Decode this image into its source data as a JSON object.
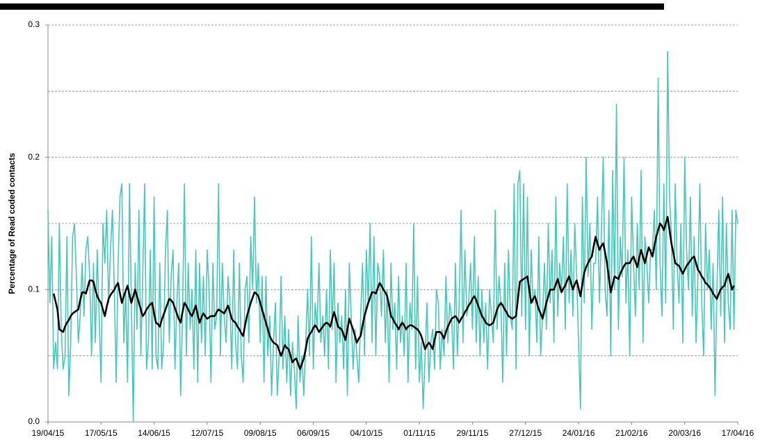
{
  "chart_data": {
    "type": "line",
    "y_label": "Percentage of Read coded contacts",
    "ylim": [
      0,
      0.3
    ],
    "yticks": [
      {
        "value": 0,
        "label": "0.0"
      },
      0.1,
      0.2,
      0.3
    ],
    "minor_grid": [
      0.05,
      0.15,
      0.25
    ],
    "grid": true,
    "categories": [
      "19/04/15",
      null,
      null,
      null,
      null,
      null,
      null,
      null,
      null,
      null,
      null,
      null,
      null,
      null,
      null,
      null,
      null,
      null,
      null,
      null,
      null,
      null,
      null,
      null,
      null,
      null,
      null,
      null,
      "17/05/15",
      null,
      null,
      null,
      null,
      null,
      null,
      null,
      null,
      null,
      null,
      null,
      null,
      null,
      null,
      null,
      null,
      null,
      null,
      null,
      null,
      null,
      null,
      null,
      null,
      null,
      null,
      null,
      "14/06/15",
      null,
      null,
      null,
      null,
      null,
      null,
      null,
      null,
      null,
      null,
      null,
      null,
      null,
      null,
      null,
      null,
      null,
      null,
      null,
      null,
      null,
      null,
      null,
      null,
      null,
      null,
      null,
      "12/07/15",
      null,
      null,
      null,
      null,
      null,
      null,
      null,
      null,
      null,
      null,
      null,
      null,
      null,
      null,
      null,
      null,
      null,
      null,
      null,
      null,
      null,
      null,
      null,
      null,
      null,
      null,
      null,
      "09/08/15",
      null,
      null,
      null,
      null,
      null,
      null,
      null,
      null,
      null,
      null,
      null,
      null,
      null,
      null,
      null,
      null,
      null,
      null,
      null,
      null,
      null,
      null,
      null,
      null,
      null,
      null,
      null,
      "06/09/15",
      null,
      null,
      null,
      null,
      null,
      null,
      null,
      null,
      null,
      null,
      null,
      null,
      null,
      null,
      null,
      null,
      null,
      null,
      null,
      null,
      null,
      null,
      null,
      null,
      null,
      null,
      null,
      "04/10/15",
      null,
      null,
      null,
      null,
      null,
      null,
      null,
      null,
      null,
      null,
      null,
      null,
      null,
      null,
      null,
      null,
      null,
      null,
      null,
      null,
      null,
      null,
      null,
      null,
      null,
      null,
      null,
      "01/11/15",
      null,
      null,
      null,
      null,
      null,
      null,
      null,
      null,
      null,
      null,
      null,
      null,
      null,
      null,
      null,
      null,
      null,
      null,
      null,
      null,
      null,
      null,
      null,
      null,
      null,
      null,
      null,
      "29/11/15",
      null,
      null,
      null,
      null,
      null,
      null,
      null,
      null,
      null,
      null,
      null,
      null,
      null,
      null,
      null,
      null,
      null,
      null,
      null,
      null,
      null,
      null,
      null,
      null,
      null,
      null,
      null,
      "27/12/15",
      null,
      null,
      null,
      null,
      null,
      null,
      null,
      null,
      null,
      null,
      null,
      null,
      null,
      null,
      null,
      null,
      null,
      null,
      null,
      null,
      null,
      null,
      null,
      null,
      null,
      null,
      null,
      "24/01/16",
      null,
      null,
      null,
      null,
      null,
      null,
      null,
      null,
      null,
      null,
      null,
      null,
      null,
      null,
      null,
      null,
      null,
      null,
      null,
      null,
      null,
      null,
      null,
      null,
      null,
      null,
      null,
      "21/02/16",
      null,
      null,
      null,
      null,
      null,
      null,
      null,
      null,
      null,
      null,
      null,
      null,
      null,
      null,
      null,
      null,
      null,
      null,
      null,
      null,
      null,
      null,
      null,
      null,
      null,
      null,
      null,
      "20/03/16",
      null,
      null,
      null,
      null,
      null,
      null,
      null,
      null,
      null,
      null,
      null,
      null,
      null,
      null,
      null,
      null,
      null,
      null,
      null,
      null,
      null,
      null,
      null,
      null,
      null,
      null,
      null,
      "17/04/16"
    ],
    "series": [
      {
        "color": "#45c9b8",
        "width": 1.6,
        "values": [
          0.16,
          0.09,
          0.14,
          0.04,
          0.06,
          0.04,
          0.15,
          0.07,
          0.04,
          0.05,
          0.14,
          0.02,
          0.06,
          0.14,
          0.15,
          0.11,
          0.06,
          0.08,
          0.12,
          0.08,
          0.13,
          0.14,
          0.11,
          0.05,
          0.12,
          0.06,
          0.13,
          0.08,
          0.03,
          0.15,
          0.12,
          0.16,
          0.09,
          0.13,
          0.16,
          0.1,
          0.03,
          0.12,
          0.17,
          0.18,
          0.06,
          0.1,
          0.03,
          0.18,
          0.09,
          0.0,
          0.12,
          0.07,
          0.16,
          0.05,
          0.11,
          0.18,
          0.04,
          0.06,
          0.13,
          0.04,
          0.17,
          0.05,
          0.04,
          0.12,
          0.04,
          0.06,
          0.13,
          0.16,
          0.06,
          0.11,
          0.13,
          0.04,
          0.09,
          0.12,
          0.02,
          0.08,
          0.18,
          0.05,
          0.12,
          0.07,
          0.1,
          0.04,
          0.13,
          0.03,
          0.12,
          0.06,
          0.11,
          0.05,
          0.13,
          0.1,
          0.03,
          0.12,
          0.07,
          0.08,
          0.18,
          0.05,
          0.12,
          0.08,
          0.06,
          0.11,
          0.09,
          0.04,
          0.13,
          0.06,
          0.04,
          0.12,
          0.05,
          0.03,
          0.1,
          0.11,
          0.06,
          0.14,
          0.1,
          0.17,
          0.09,
          0.12,
          0.06,
          0.11,
          0.03,
          0.11,
          0.05,
          0.08,
          0.02,
          0.06,
          0.09,
          0.02,
          0.05,
          0.11,
          0.04,
          0.08,
          0.03,
          0.07,
          0.02,
          0.06,
          0.04,
          0.01,
          0.08,
          0.03,
          0.05,
          0.02,
          0.06,
          0.1,
          0.05,
          0.14,
          0.04,
          0.09,
          0.07,
          0.12,
          0.06,
          0.08,
          0.05,
          0.1,
          0.04,
          0.13,
          0.07,
          0.12,
          0.03,
          0.09,
          0.06,
          0.08,
          0.04,
          0.1,
          0.02,
          0.12,
          0.08,
          0.04,
          0.07,
          0.05,
          0.03,
          0.08,
          0.12,
          0.05,
          0.13,
          0.09,
          0.15,
          0.06,
          0.14,
          0.05,
          0.12,
          0.11,
          0.08,
          0.13,
          0.06,
          0.1,
          0.03,
          0.12,
          0.07,
          0.09,
          0.04,
          0.11,
          0.06,
          0.08,
          0.05,
          0.12,
          0.03,
          0.09,
          0.07,
          0.15,
          0.04,
          0.11,
          0.03,
          0.06,
          0.01,
          0.05,
          0.09,
          0.03,
          0.06,
          0.07,
          0.04,
          0.1,
          0.09,
          0.04,
          0.07,
          0.05,
          0.11,
          0.06,
          0.09,
          0.08,
          0.04,
          0.12,
          0.05,
          0.09,
          0.16,
          0.06,
          0.13,
          0.08,
          0.09,
          0.12,
          0.07,
          0.14,
          0.06,
          0.11,
          0.05,
          0.1,
          0.06,
          0.09,
          0.04,
          0.1,
          0.08,
          0.06,
          0.16,
          0.07,
          0.11,
          0.09,
          0.03,
          0.12,
          0.05,
          0.13,
          0.08,
          0.07,
          0.18,
          0.04,
          0.18,
          0.19,
          0.08,
          0.18,
          0.07,
          0.17,
          0.05,
          0.13,
          0.09,
          0.1,
          0.06,
          0.14,
          0.05,
          0.08,
          0.12,
          0.07,
          0.15,
          0.09,
          0.13,
          0.06,
          0.17,
          0.08,
          0.12,
          0.1,
          0.14,
          0.07,
          0.18,
          0.09,
          0.13,
          0.08,
          0.15,
          0.11,
          0.06,
          0.01,
          0.17,
          0.09,
          0.2,
          0.11,
          0.15,
          0.07,
          0.12,
          0.12,
          0.17,
          0.09,
          0.14,
          0.2,
          0.1,
          0.08,
          0.16,
          0.05,
          0.19,
          0.1,
          0.24,
          0.07,
          0.14,
          0.11,
          0.2,
          0.09,
          0.13,
          0.05,
          0.17,
          0.12,
          0.08,
          0.15,
          0.1,
          0.19,
          0.06,
          0.14,
          0.12,
          0.09,
          0.13,
          0.13,
          0.16,
          0.1,
          0.26,
          0.12,
          0.08,
          0.18,
          0.09,
          0.28,
          0.17,
          0.14,
          0.07,
          0.18,
          0.12,
          0.09,
          0.15,
          0.06,
          0.2,
          0.13,
          0.1,
          0.17,
          0.08,
          0.14,
          0.06,
          0.11,
          0.18,
          0.09,
          0.05,
          0.15,
          0.1,
          0.13,
          0.07,
          0.12,
          0.02,
          0.1,
          0.16,
          0.08,
          0.17,
          0.06,
          0.15,
          0.09,
          0.07,
          0.16,
          0.07,
          0.16,
          0.15
        ]
      },
      {
        "color": "#000000",
        "width": 2.6,
        "values": [
          null,
          null,
          null,
          0.097,
          0.091,
          0.085,
          0.07,
          0.069,
          0.068,
          0.072,
          0.075,
          0.077,
          0.08,
          0.082,
          0.083,
          0.084,
          0.085,
          0.092,
          0.098,
          0.098,
          0.097,
          0.102,
          0.107,
          0.107,
          0.106,
          0.1,
          0.095,
          0.092,
          0.09,
          0.085,
          0.08,
          0.087,
          0.093,
          0.096,
          0.098,
          0.1,
          0.103,
          0.105,
          0.097,
          0.09,
          0.095,
          0.099,
          0.103,
          0.096,
          0.09,
          0.095,
          0.1,
          0.095,
          0.09,
          0.085,
          0.08,
          0.082,
          0.085,
          0.087,
          0.089,
          0.09,
          0.082,
          0.075,
          0.074,
          0.072,
          0.077,
          0.081,
          0.085,
          0.089,
          0.093,
          0.092,
          0.09,
          0.086,
          0.082,
          0.078,
          0.075,
          0.083,
          0.09,
          0.088,
          0.085,
          0.082,
          0.08,
          0.084,
          0.088,
          0.081,
          0.075,
          0.079,
          0.082,
          0.08,
          0.078,
          0.079,
          0.08,
          0.08,
          0.08,
          0.083,
          0.085,
          0.084,
          0.083,
          0.082,
          0.085,
          0.088,
          0.083,
          0.078,
          0.076,
          0.075,
          0.072,
          0.07,
          0.067,
          0.065,
          0.073,
          0.08,
          0.085,
          0.09,
          0.094,
          0.098,
          0.097,
          0.095,
          0.09,
          0.085,
          0.08,
          0.075,
          0.07,
          0.065,
          0.062,
          0.06,
          0.059,
          0.058,
          0.054,
          0.05,
          0.054,
          0.058,
          0.056,
          0.055,
          0.05,
          0.045,
          0.047,
          0.048,
          0.044,
          0.04,
          0.044,
          0.048,
          0.055,
          0.063,
          0.066,
          0.068,
          0.071,
          0.073,
          0.071,
          0.068,
          0.07,
          0.072,
          0.074,
          0.075,
          0.074,
          0.072,
          0.078,
          0.083,
          0.078,
          0.072,
          0.071,
          0.07,
          0.066,
          0.062,
          0.07,
          0.078,
          0.074,
          0.07,
          0.065,
          0.06,
          0.063,
          0.065,
          0.073,
          0.08,
          0.085,
          0.09,
          0.094,
          0.098,
          0.098,
          0.097,
          0.101,
          0.105,
          0.103,
          0.1,
          0.098,
          0.095,
          0.088,
          0.08,
          0.078,
          0.075,
          0.073,
          0.07,
          0.073,
          0.075,
          0.073,
          0.07,
          0.072,
          0.073,
          0.073,
          0.072,
          0.071,
          0.07,
          0.068,
          0.065,
          0.06,
          0.055,
          0.058,
          0.06,
          0.058,
          0.055,
          0.062,
          0.068,
          0.068,
          0.068,
          0.066,
          0.063,
          0.068,
          0.072,
          0.075,
          0.078,
          0.079,
          0.08,
          0.078,
          0.075,
          0.078,
          0.08,
          0.083,
          0.085,
          0.088,
          0.09,
          0.093,
          0.095,
          0.092,
          0.088,
          0.084,
          0.08,
          0.078,
          0.075,
          0.074,
          0.073,
          0.074,
          0.075,
          0.08,
          0.085,
          0.088,
          0.09,
          0.088,
          0.085,
          0.083,
          0.08,
          0.079,
          0.078,
          0.079,
          0.08,
          0.093,
          0.106,
          0.107,
          0.108,
          0.109,
          0.11,
          0.1,
          0.09,
          0.093,
          0.095,
          0.09,
          0.085,
          0.082,
          0.078,
          0.084,
          0.09,
          0.095,
          0.1,
          0.1,
          0.1,
          0.104,
          0.108,
          0.103,
          0.098,
          0.101,
          0.103,
          0.107,
          0.11,
          0.105,
          0.1,
          0.104,
          0.107,
          0.101,
          0.095,
          0.104,
          0.113,
          0.117,
          0.12,
          0.123,
          0.125,
          0.133,
          0.14,
          0.135,
          0.13,
          0.133,
          0.135,
          0.128,
          0.12,
          0.109,
          0.098,
          0.104,
          0.11,
          0.109,
          0.108,
          0.112,
          0.115,
          0.118,
          0.12,
          0.12,
          0.12,
          0.123,
          0.125,
          0.121,
          0.117,
          0.124,
          0.13,
          0.125,
          0.12,
          0.126,
          0.132,
          0.129,
          0.125,
          0.133,
          0.14,
          0.145,
          0.15,
          0.148,
          0.145,
          0.15,
          0.155,
          0.145,
          0.135,
          0.128,
          0.12,
          0.119,
          0.118,
          0.115,
          0.112,
          0.115,
          0.118,
          0.12,
          0.122,
          0.124,
          0.125,
          0.12,
          0.115,
          0.113,
          0.11,
          0.108,
          0.105,
          0.104,
          0.102,
          0.1,
          0.097,
          0.095,
          0.093,
          0.097,
          0.1,
          0.102,
          0.103,
          0.108,
          0.112,
          0.106,
          0.1,
          0.103,
          null,
          null
        ]
      }
    ]
  }
}
